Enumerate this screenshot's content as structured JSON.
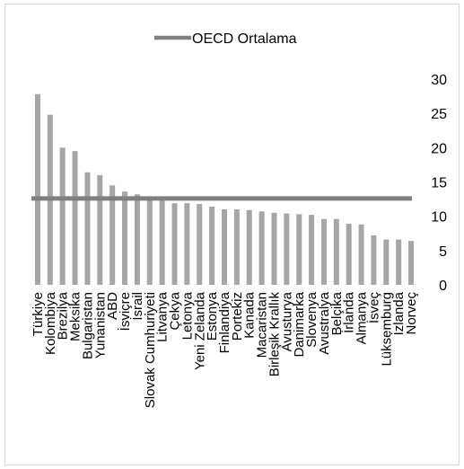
{
  "chart_data": {
    "type": "bar",
    "title": "",
    "xlabel": "",
    "ylabel": "",
    "ylim": [
      0,
      30
    ],
    "yticks": [
      0,
      5,
      10,
      15,
      20,
      25,
      30
    ],
    "grid": false,
    "legend_position": "top",
    "categories": [
      "Türkiye",
      "Kolombiya",
      "Brezilya",
      "Meksika",
      "Bulgaristan",
      "Yunanistan",
      "ABD",
      "İsviçre",
      "İsrail",
      "Slovak Cumhuriyeti",
      "Litvanya",
      "Çekya",
      "Letonya",
      "Yeni Zelanda",
      "Estonya",
      "Finlandiya",
      "Portekiz",
      "Kanada",
      "Macaristan",
      "Birleşik Krallık",
      "Avusturya",
      "Danimarka",
      "Slovenya",
      "Avustralya",
      "Belçika",
      "İrlanda",
      "Almanya",
      "İsveç",
      "Lüksemburg",
      "İzlanda",
      "Norveç"
    ],
    "series": [
      {
        "name": "",
        "color": "#a6a6a6",
        "values": [
          27.8,
          24.8,
          20.0,
          19.5,
          16.4,
          16.0,
          14.5,
          13.6,
          13.2,
          12.8,
          12.5,
          11.9,
          11.9,
          11.8,
          11.4,
          11.0,
          11.0,
          10.9,
          10.7,
          10.5,
          10.4,
          10.3,
          10.2,
          9.6,
          9.6,
          8.9,
          8.8,
          7.2,
          6.6,
          6.6,
          6.4
        ]
      }
    ],
    "reference_line": {
      "name": "OECD Ortalama",
      "value": 12.6,
      "color": "#808080"
    }
  }
}
